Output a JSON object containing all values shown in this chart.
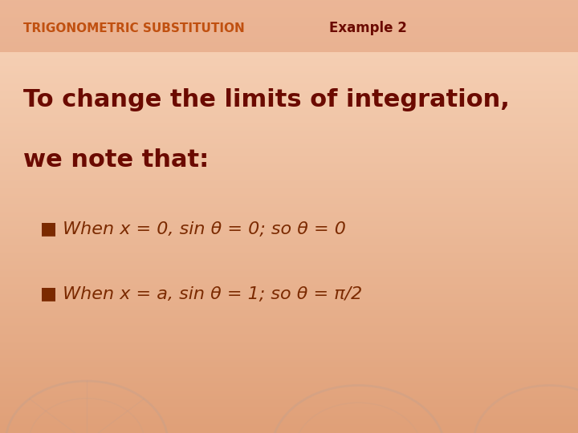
{
  "title_part1": "TRIGONOMETRIC SUBSTITUTION",
  "title_part2": "Example 2",
  "title_color": "#C05010",
  "title_fontsize": 11,
  "title_example_fontsize": 12,
  "main_text_line1": "To change the limits of integration,",
  "main_text_line2": "we note that:",
  "main_text_color": "#6B0A00",
  "main_text_fontsize": 22,
  "bullet1_prefix": "■ When ",
  "bullet1_italic": "x",
  "bullet1_mid": " = 0, sin θ = 0; so θ = 0",
  "bullet2_prefix": "■ When ",
  "bullet2_italic": "x",
  "bullet2_mid": " = ",
  "bullet2_italic2": "a",
  "bullet2_end": ", sin θ = 1; so θ = π/2",
  "bullet_color": "#7B2A00",
  "bullet_fontsize": 16,
  "bg_color_left": "#F8D5BB",
  "bg_color_right": "#E8A878",
  "header_bar_color": "#D98860",
  "header_bar_alpha": 0.4,
  "fig_width": 7.2,
  "fig_height": 5.4,
  "dpi": 100
}
